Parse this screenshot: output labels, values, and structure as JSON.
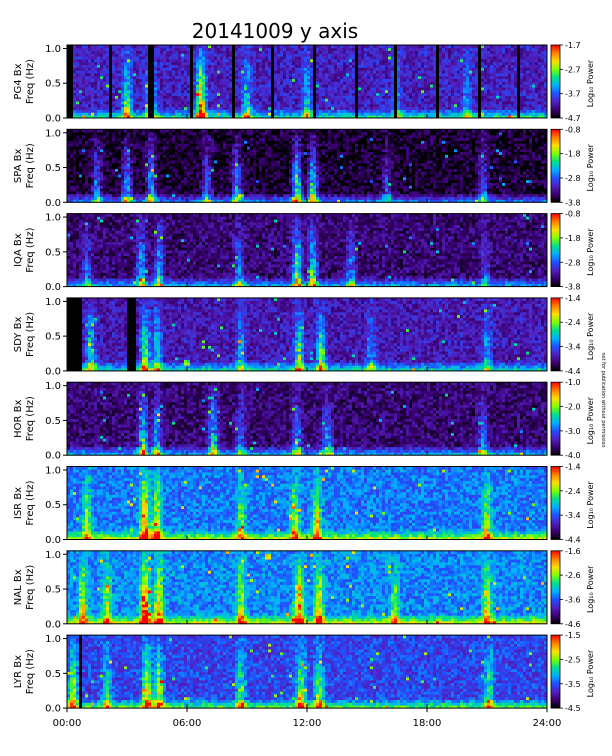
{
  "title": "20141009 y axis",
  "side_note": "not for publication without permission",
  "chart_data": {
    "type": "heatmap",
    "x": {
      "range_hours": [
        0,
        24
      ],
      "tick_labels": [
        "00:00",
        "06:00",
        "12:00",
        "18:00",
        "24:00"
      ],
      "tick_hours": [
        0,
        6,
        12,
        18,
        24
      ]
    },
    "y": {
      "range": [
        0,
        1.05
      ],
      "tick_labels": [
        "0.0",
        "0.5",
        "1.0"
      ],
      "tick_values": [
        0,
        0.5,
        1.0
      ]
    },
    "colorbar_label": "Log₁₀ Power",
    "colormap": [
      "#000000",
      "#3a0070",
      "#5020c0",
      "#2050ff",
      "#00b0ff",
      "#00e08a",
      "#80ff00",
      "#ffe000",
      "#ff8000",
      "#ff0000"
    ],
    "panels": [
      {
        "station": "PG4 Bx",
        "freq_label": "Freq (Hz)",
        "colorbar": {
          "ticks": [
            "-1.7",
            "-2.7",
            "-3.7",
            "-4.7"
          ],
          "range": [
            -4.7,
            -1.7
          ]
        },
        "background_level": 0.22,
        "gaps": [
          {
            "from": 0.0,
            "to": 0.35
          },
          {
            "from": 2.05,
            "to": 2.3
          },
          {
            "from": 4.1,
            "to": 4.3
          },
          {
            "from": 6.15,
            "to": 6.3
          },
          {
            "from": 8.2,
            "to": 8.35
          },
          {
            "from": 10.25,
            "to": 10.4
          },
          {
            "from": 12.3,
            "to": 12.45
          },
          {
            "from": 14.35,
            "to": 14.5
          },
          {
            "from": 16.4,
            "to": 16.55
          },
          {
            "from": 18.45,
            "to": 18.6
          },
          {
            "from": 20.5,
            "to": 20.65
          },
          {
            "from": 22.55,
            "to": 22.7
          }
        ],
        "events": [
          {
            "hour": 3.0,
            "strength": 0.5
          },
          {
            "hour": 4.2,
            "strength": 0.6
          },
          {
            "hour": 6.7,
            "strength": 0.8
          },
          {
            "hour": 9.0,
            "strength": 0.4
          },
          {
            "hour": 12.0,
            "strength": 0.35
          },
          {
            "hour": 16.5,
            "strength": 0.25
          },
          {
            "hour": 20.0,
            "strength": 0.25
          }
        ]
      },
      {
        "station": "SPA Bx",
        "freq_label": "Freq (Hz)",
        "colorbar": {
          "ticks": [
            "-0.8",
            "-1.8",
            "-2.8",
            "-3.8"
          ],
          "range": [
            -3.8,
            -0.8
          ]
        },
        "background_level": 0.05,
        "gaps": [],
        "events": [
          {
            "hour": 1.5,
            "strength": 0.4
          },
          {
            "hour": 3.0,
            "strength": 0.45
          },
          {
            "hour": 4.2,
            "strength": 0.5
          },
          {
            "hour": 7.0,
            "strength": 0.4
          },
          {
            "hour": 8.5,
            "strength": 0.45
          },
          {
            "hour": 11.5,
            "strength": 0.7
          },
          {
            "hour": 12.3,
            "strength": 0.6
          },
          {
            "hour": 16.0,
            "strength": 0.3
          },
          {
            "hour": 20.8,
            "strength": 0.35
          }
        ]
      },
      {
        "station": "IQA Bx",
        "freq_label": "Freq (Hz)",
        "colorbar": {
          "ticks": [
            "-0.8",
            "-1.8",
            "-2.8",
            "-3.8"
          ],
          "range": [
            -3.8,
            -0.8
          ]
        },
        "background_level": 0.12,
        "gaps": [],
        "events": [
          {
            "hour": 1.0,
            "strength": 0.3
          },
          {
            "hour": 3.7,
            "strength": 0.45
          },
          {
            "hour": 4.6,
            "strength": 0.45
          },
          {
            "hour": 8.6,
            "strength": 0.35
          },
          {
            "hour": 11.5,
            "strength": 0.65
          },
          {
            "hour": 12.3,
            "strength": 0.55
          },
          {
            "hour": 14.2,
            "strength": 0.35
          },
          {
            "hour": 20.9,
            "strength": 0.25
          }
        ]
      },
      {
        "station": "SDY Bx",
        "freq_label": "Freq (Hz)",
        "colorbar": {
          "ticks": [
            "-1.4",
            "-2.4",
            "-3.4",
            "-4.4"
          ],
          "range": [
            -4.4,
            -1.4
          ]
        },
        "background_level": 0.2,
        "gaps": [
          {
            "from": 0.0,
            "to": 0.8
          },
          {
            "from": 3.0,
            "to": 3.5
          }
        ],
        "events": [
          {
            "hour": 1.2,
            "strength": 0.45
          },
          {
            "hour": 3.9,
            "strength": 0.55
          },
          {
            "hour": 4.5,
            "strength": 0.45
          },
          {
            "hour": 8.7,
            "strength": 0.35
          },
          {
            "hour": 11.6,
            "strength": 0.5
          },
          {
            "hour": 12.7,
            "strength": 0.55
          },
          {
            "hour": 15.2,
            "strength": 0.3
          },
          {
            "hour": 21.0,
            "strength": 0.3
          }
        ]
      },
      {
        "station": "HOR Bx",
        "freq_label": "Freq (Hz)",
        "colorbar": {
          "ticks": [
            "-1.0",
            "-2.0",
            "-3.0",
            "-4.0"
          ],
          "range": [
            -4.0,
            -1.0
          ]
        },
        "background_level": 0.12,
        "gaps": [],
        "events": [
          {
            "hour": 3.8,
            "strength": 0.55
          },
          {
            "hour": 4.5,
            "strength": 0.45
          },
          {
            "hour": 7.3,
            "strength": 0.5
          },
          {
            "hour": 8.7,
            "strength": 0.3
          },
          {
            "hour": 11.5,
            "strength": 0.4
          },
          {
            "hour": 13.0,
            "strength": 0.35
          },
          {
            "hour": 20.8,
            "strength": 0.35
          }
        ]
      },
      {
        "station": "ISR Bx",
        "freq_label": "Freq (Hz)",
        "colorbar": {
          "ticks": [
            "-1.4",
            "-2.4",
            "-3.4",
            "-4.4"
          ],
          "range": [
            -4.4,
            -1.4
          ]
        },
        "background_level": 0.38,
        "gaps": [],
        "events": [
          {
            "hour": 1.0,
            "strength": 0.4
          },
          {
            "hour": 3.9,
            "strength": 0.7
          },
          {
            "hour": 4.5,
            "strength": 0.55
          },
          {
            "hour": 8.7,
            "strength": 0.35
          },
          {
            "hour": 11.4,
            "strength": 0.45
          },
          {
            "hour": 12.5,
            "strength": 0.45
          },
          {
            "hour": 21.0,
            "strength": 0.45
          }
        ]
      },
      {
        "station": "NAL Bx",
        "freq_label": "Freq (Hz)",
        "colorbar": {
          "ticks": [
            "-1.6",
            "-2.6",
            "-3.6",
            "-4.6"
          ],
          "range": [
            -4.6,
            -1.6
          ]
        },
        "background_level": 0.4,
        "gaps": [],
        "events": [
          {
            "hour": 0.8,
            "strength": 0.45
          },
          {
            "hour": 2.0,
            "strength": 0.4
          },
          {
            "hour": 3.9,
            "strength": 0.7
          },
          {
            "hour": 4.6,
            "strength": 0.55
          },
          {
            "hour": 8.7,
            "strength": 0.4
          },
          {
            "hour": 11.6,
            "strength": 0.6
          },
          {
            "hour": 12.6,
            "strength": 0.5
          },
          {
            "hour": 16.4,
            "strength": 0.3
          },
          {
            "hour": 21.0,
            "strength": 0.45
          }
        ]
      },
      {
        "station": "LYR Bx",
        "freq_label": "Freq (Hz)",
        "colorbar": {
          "ticks": [
            "-1.5",
            "-2.5",
            "-3.5",
            "-4.5"
          ],
          "range": [
            -4.5,
            -1.5
          ]
        },
        "background_level": 0.3,
        "gaps": [
          {
            "from": 0.65,
            "to": 0.8
          }
        ],
        "events": [
          {
            "hour": 0.3,
            "strength": 0.55
          },
          {
            "hour": 2.0,
            "strength": 0.35
          },
          {
            "hour": 4.0,
            "strength": 0.65
          },
          {
            "hour": 4.6,
            "strength": 0.5
          },
          {
            "hour": 8.7,
            "strength": 0.4
          },
          {
            "hour": 11.7,
            "strength": 0.55
          },
          {
            "hour": 12.6,
            "strength": 0.45
          },
          {
            "hour": 21.1,
            "strength": 0.4
          }
        ]
      }
    ]
  }
}
